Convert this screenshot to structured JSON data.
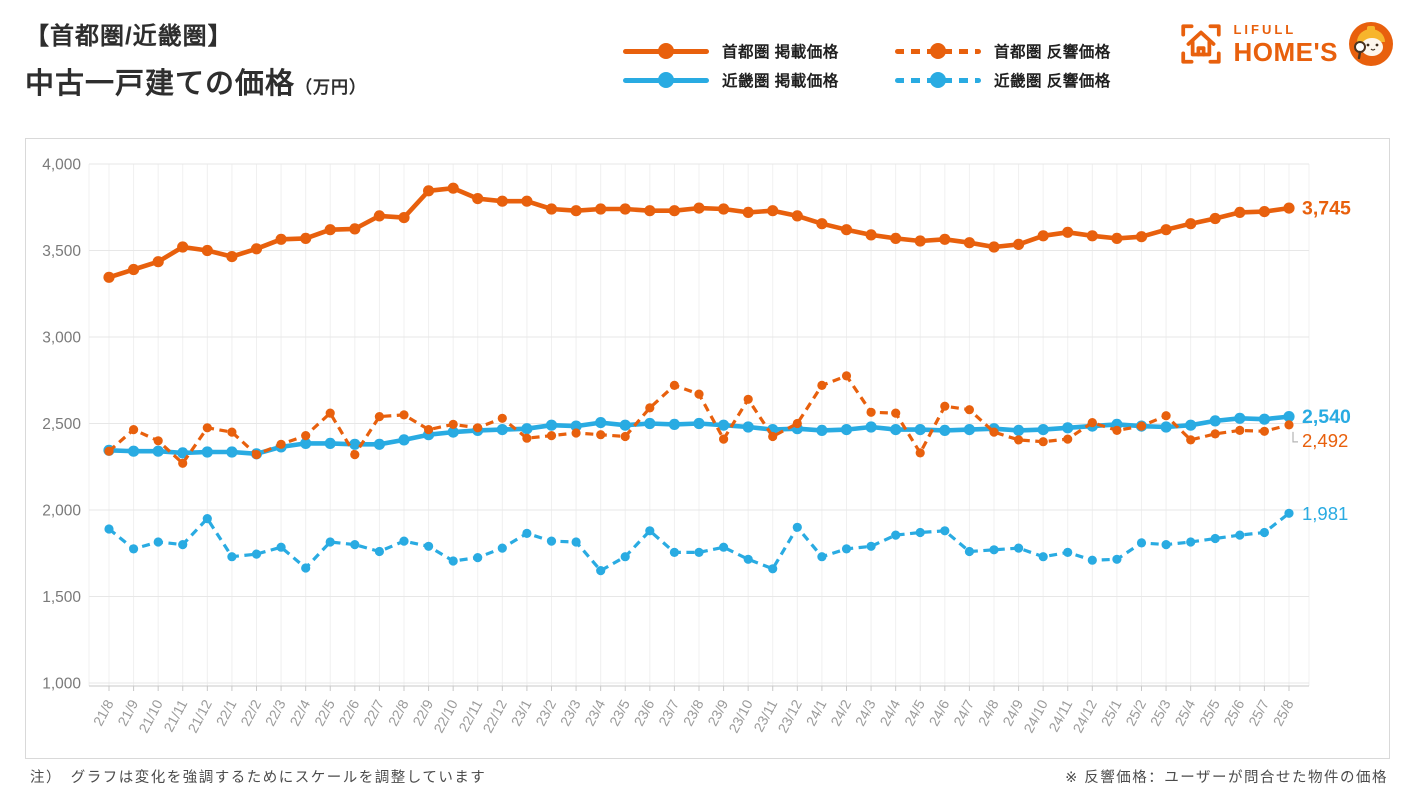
{
  "header": {
    "title_line1": "【首都圏/近畿圏】",
    "title_line2": "中古一戸建ての価格",
    "title_unit": "（万円）"
  },
  "logo": {
    "brand_top": "LIFULL",
    "brand_bottom": "HOME'S"
  },
  "legend": {
    "items": [
      {
        "label": "首都圏 掲載価格",
        "color": "#E8600D",
        "dashed": false
      },
      {
        "label": "首都圏 反響価格",
        "color": "#E8600D",
        "dashed": true
      },
      {
        "label": "近畿圏 掲載価格",
        "color": "#29ABE2",
        "dashed": false
      },
      {
        "label": "近畿圏 反響価格",
        "color": "#29ABE2",
        "dashed": true
      }
    ]
  },
  "notes": {
    "left": "注）　グラフは変化を強調するためにスケールを調整しています",
    "right": "※ 反響価格：ユーザーが問合せた物件の価格"
  },
  "chart_data": {
    "type": "line",
    "title": "中古一戸建ての価格（万円） 首都圏/近畿圏",
    "unit": "万円",
    "ylim": [
      1000,
      4000
    ],
    "yticks": [
      1000,
      1500,
      2000,
      2500,
      3000,
      3500,
      4000
    ],
    "grid": true,
    "legend_position": "top",
    "x": [
      "21/8",
      "21/9",
      "21/10",
      "21/11",
      "21/12",
      "22/1",
      "22/2",
      "22/3",
      "22/4",
      "22/5",
      "22/6",
      "22/7",
      "22/8",
      "22/9",
      "22/10",
      "22/11",
      "22/12",
      "23/1",
      "23/2",
      "23/3",
      "23/4",
      "23/5",
      "23/6",
      "23/7",
      "23/8",
      "23/9",
      "23/10",
      "23/11",
      "23/12",
      "24/1",
      "24/2",
      "24/3",
      "24/4",
      "24/5",
      "24/6",
      "24/7",
      "24/8",
      "24/9",
      "24/10",
      "24/11",
      "24/12",
      "25/1",
      "25/2",
      "25/3",
      "25/4",
      "25/5",
      "25/6",
      "25/7",
      "25/8"
    ],
    "series": [
      {
        "key": "shutoken-keisai",
        "name": "首都圏 掲載価格",
        "color": "#E8600D",
        "dashed": false,
        "end_label": "3,745",
        "end_label_bold": true,
        "values": [
          3345,
          3390,
          3435,
          3520,
          3500,
          3465,
          3510,
          3565,
          3570,
          3620,
          3625,
          3700,
          3690,
          3845,
          3860,
          3800,
          3785,
          3785,
          3740,
          3730,
          3740,
          3740,
          3730,
          3730,
          3745,
          3740,
          3720,
          3730,
          3700,
          3655,
          3620,
          3590,
          3570,
          3555,
          3565,
          3545,
          3520,
          3535,
          3585,
          3605,
          3585,
          3570,
          3580,
          3620,
          3655,
          3685,
          3720,
          3725,
          3745
        ]
      },
      {
        "key": "kinkiken-keisai",
        "name": "近畿圏 掲載価格",
        "color": "#29ABE2",
        "dashed": false,
        "end_label": "2,540",
        "end_label_bold": true,
        "values": [
          2345,
          2340,
          2340,
          2330,
          2335,
          2335,
          2325,
          2365,
          2385,
          2385,
          2380,
          2380,
          2405,
          2435,
          2450,
          2460,
          2465,
          2470,
          2490,
          2485,
          2505,
          2490,
          2500,
          2495,
          2500,
          2490,
          2480,
          2465,
          2470,
          2460,
          2465,
          2480,
          2465,
          2465,
          2460,
          2465,
          2470,
          2460,
          2465,
          2475,
          2485,
          2495,
          2485,
          2480,
          2490,
          2515,
          2530,
          2525,
          2540
        ]
      },
      {
        "key": "shutoken-hankyo",
        "name": "首都圏 反響価格",
        "color": "#E8600D",
        "dashed": true,
        "end_label": "2,492",
        "end_label_bold": false,
        "values": [
          2340,
          2465,
          2400,
          2270,
          2475,
          2450,
          2320,
          2380,
          2430,
          2560,
          2320,
          2540,
          2550,
          2465,
          2495,
          2475,
          2530,
          2415,
          2430,
          2445,
          2435,
          2425,
          2590,
          2720,
          2670,
          2410,
          2640,
          2425,
          2500,
          2720,
          2775,
          2565,
          2560,
          2330,
          2600,
          2580,
          2450,
          2405,
          2395,
          2410,
          2505,
          2460,
          2485,
          2545,
          2405,
          2440,
          2460,
          2455,
          2492
        ]
      },
      {
        "key": "kinkiken-hankyo",
        "name": "近畿圏 反響価格",
        "color": "#29ABE2",
        "dashed": true,
        "end_label": "1,981",
        "end_label_bold": false,
        "values": [
          1890,
          1775,
          1815,
          1800,
          1950,
          1730,
          1745,
          1785,
          1665,
          1815,
          1800,
          1760,
          1820,
          1790,
          1705,
          1725,
          1780,
          1865,
          1820,
          1815,
          1650,
          1730,
          1880,
          1755,
          1755,
          1785,
          1715,
          1660,
          1900,
          1730,
          1775,
          1790,
          1855,
          1870,
          1880,
          1760,
          1770,
          1780,
          1730,
          1755,
          1710,
          1715,
          1810,
          1800,
          1815,
          1835,
          1855,
          1870,
          1981
        ]
      }
    ]
  }
}
